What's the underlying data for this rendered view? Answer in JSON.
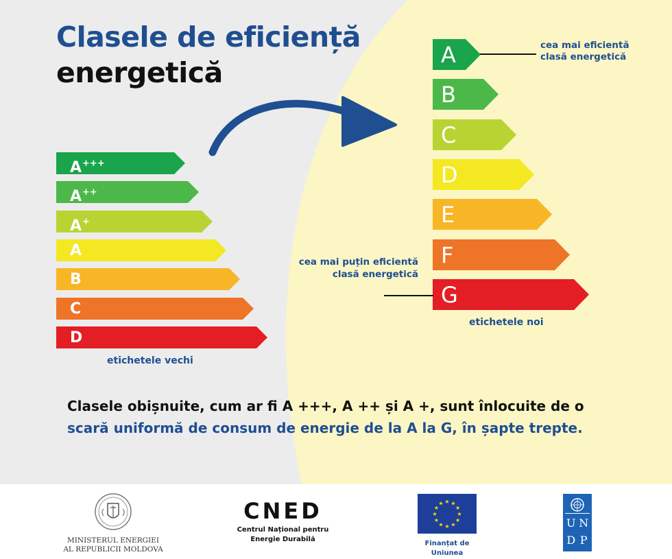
{
  "title": {
    "line1": "Clasele de eficiență",
    "line2": "energetică"
  },
  "old_scale": {
    "caption": "etichetele vechi",
    "classes": [
      {
        "letter": "A",
        "sup": "+++",
        "color": "#1aa44b"
      },
      {
        "letter": "A",
        "sup": "++",
        "color": "#4cb849"
      },
      {
        "letter": "A",
        "sup": "+",
        "color": "#b9d432"
      },
      {
        "letter": "A",
        "sup": "",
        "color": "#f4e822"
      },
      {
        "letter": "B",
        "sup": "",
        "color": "#f8b526"
      },
      {
        "letter": "C",
        "sup": "",
        "color": "#ee7428"
      },
      {
        "letter": "D",
        "sup": "",
        "color": "#e31e24"
      }
    ]
  },
  "new_scale": {
    "caption": "etichetele noi",
    "classes": [
      {
        "letter": "A",
        "color": "#1aa44b"
      },
      {
        "letter": "B",
        "color": "#4cb849"
      },
      {
        "letter": "C",
        "color": "#b9d432"
      },
      {
        "letter": "D",
        "color": "#f4e822"
      },
      {
        "letter": "E",
        "color": "#f8b526"
      },
      {
        "letter": "F",
        "color": "#ee7428"
      },
      {
        "letter": "G",
        "color": "#e31e24"
      }
    ],
    "best_note": {
      "line1": "cea mai eficientă",
      "line2": "clasă energetică"
    },
    "worst_note": {
      "line1": "cea mai puțin eficientă",
      "line2": "clasă energetică"
    }
  },
  "bottom_text": {
    "dark": "Clasele obișnuite, cum ar fi A +++, A ++ și A +, sunt înlocuite de o",
    "blue": "scară uniformă de consum de energie de la A la G, în șapte trepte."
  },
  "footer": {
    "ministry": {
      "line1": "MINISTERUL ENERGIEI",
      "line2": "AL REPUBLICII MOLDOVA"
    },
    "cned": {
      "logo": "CNED",
      "line1": "Centrul Național pentru",
      "line2": "Energie Durabilă"
    },
    "eu": {
      "line1": "Finanțat de",
      "line2": "Uniunea Europeană"
    },
    "undp": {
      "letters": [
        "U",
        "N",
        "D",
        "P"
      ]
    }
  },
  "colors": {
    "brand_blue": "#1f4e91",
    "background_gray": "#ececec",
    "background_yellow": "#fbf6c4"
  },
  "icons": [
    "arrow-icon",
    "coat-of-arms-icon",
    "eu-flag-icon",
    "un-emblem-icon"
  ]
}
